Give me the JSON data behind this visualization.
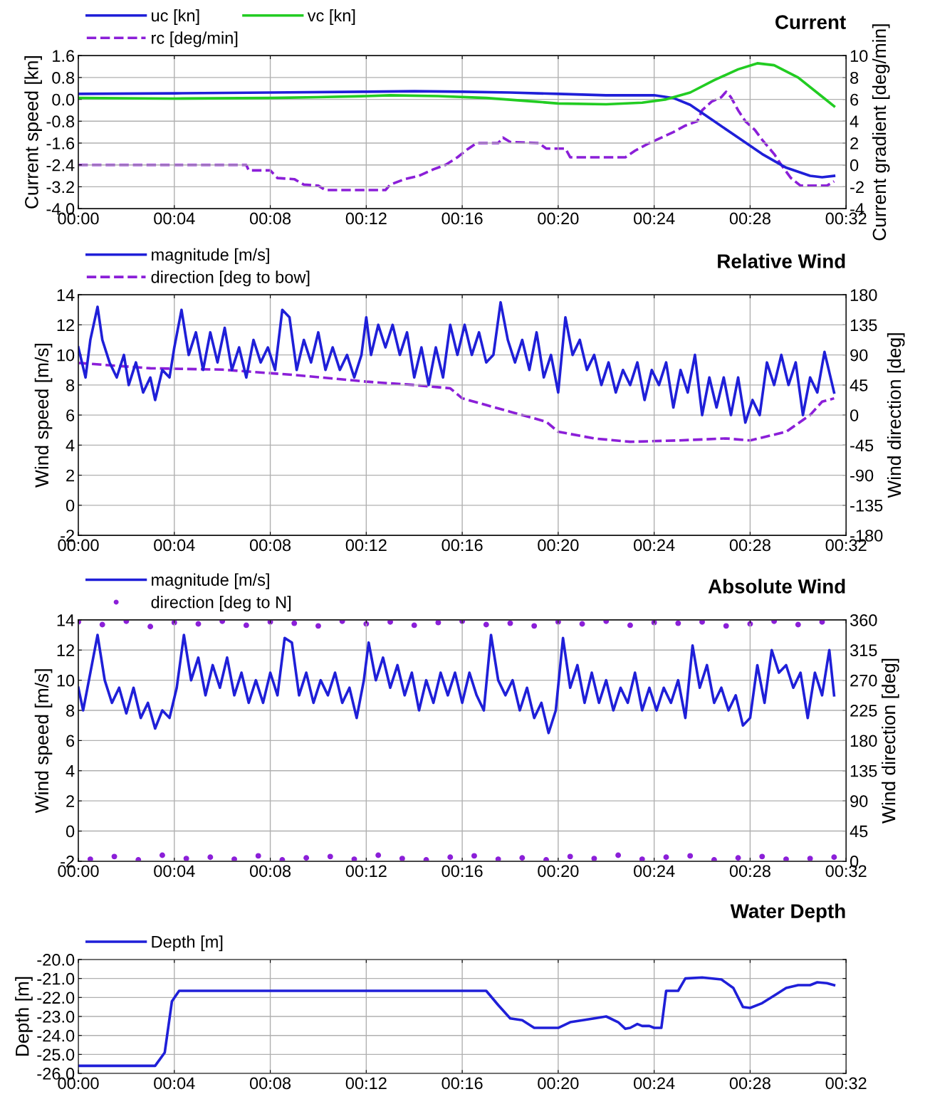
{
  "chart_data": [
    {
      "type": "line",
      "title": "Current",
      "ylabel": "Current speed [kn]",
      "y2label": "Current gradient [deg/min]",
      "xlim": [
        0,
        32
      ],
      "xticks": [
        {
          "value": 0,
          "label": "00:00"
        },
        {
          "value": 4,
          "label": "00:04"
        },
        {
          "value": 8,
          "label": "00:08"
        },
        {
          "value": 12,
          "label": "00:12"
        },
        {
          "value": 16,
          "label": "00:16"
        },
        {
          "value": 20,
          "label": "00:20"
        },
        {
          "value": 24,
          "label": "00:24"
        },
        {
          "value": 28,
          "label": "00:28"
        },
        {
          "value": 32,
          "label": "00:32"
        }
      ],
      "ylim": [
        -4,
        1.6
      ],
      "yticks": [
        {
          "value": -4,
          "label": "-4.0"
        },
        -3.2,
        -2.4,
        -1.6,
        -0.8,
        {
          "value": 0,
          "label": "0.0"
        },
        0.8,
        1.6
      ],
      "y2lim": [
        -4,
        10
      ],
      "y2ticks": [
        -4,
        -2,
        0,
        2,
        4,
        6,
        8,
        10
      ],
      "grid": true,
      "legend": "top left",
      "series": [
        {
          "name": "uc [kn]",
          "color": "#1f1fd8",
          "x": [
            0,
            4,
            8,
            12,
            14,
            16,
            18,
            20,
            22,
            24,
            24.8,
            25.5,
            26.5,
            27.5,
            28.5,
            29.5,
            30.5,
            31,
            31.5
          ],
          "values": [
            0.2,
            0.22,
            0.25,
            0.28,
            0.3,
            0.28,
            0.25,
            0.2,
            0.15,
            0.15,
            0.05,
            -0.2,
            -0.8,
            -1.4,
            -2.0,
            -2.5,
            -2.8,
            -2.85,
            -2.8
          ]
        },
        {
          "name": "vc [kn]",
          "color": "#22cc22",
          "x": [
            0,
            4,
            8,
            10,
            12,
            13,
            15,
            17,
            19,
            20,
            22,
            23.5,
            24.5,
            25.5,
            26.5,
            27.5,
            28.3,
            29,
            30,
            31,
            31.5
          ],
          "values": [
            0.05,
            0.03,
            0.05,
            0.08,
            0.12,
            0.15,
            0.12,
            0.05,
            -0.08,
            -0.15,
            -0.18,
            -0.12,
            0,
            0.25,
            0.7,
            1.1,
            1.32,
            1.25,
            0.8,
            0.1,
            -0.25
          ]
        },
        {
          "name": "rc [deg/min]",
          "color": "#8b1fd8",
          "axis": "y2",
          "line_style": "dashed",
          "x": [
            0,
            7,
            7.1,
            8,
            8.3,
            9,
            9.4,
            10,
            10.3,
            12.8,
            13,
            13.6,
            14.2,
            14.8,
            15.3,
            15.8,
            16.2,
            16.6,
            17.5,
            17.7,
            18,
            19.2,
            19.5,
            20.3,
            20.5,
            22.8,
            23.2,
            23.8,
            24.2,
            24.8,
            25.3,
            25.8,
            26,
            26.4,
            26.8,
            27,
            27.2,
            27.5,
            27.8,
            28.2,
            28.5,
            29,
            29.3,
            29.7,
            30.1,
            31.2,
            31.5
          ],
          "values": [
            0,
            0,
            -0.5,
            -0.5,
            -1.2,
            -1.3,
            -1.8,
            -1.9,
            -2.3,
            -2.3,
            -1.8,
            -1.3,
            -1,
            -0.4,
            0,
            0.7,
            1.4,
            2,
            2,
            2.5,
            2.1,
            2,
            1.5,
            1.5,
            0.7,
            0.7,
            1.3,
            2,
            2.4,
            3,
            3.6,
            4,
            5,
            5.8,
            6.2,
            6.7,
            6.2,
            5,
            4,
            3.2,
            2.3,
            1,
            0,
            -1.2,
            -1.9,
            -1.9,
            -1.5
          ]
        }
      ]
    },
    {
      "type": "line",
      "title": "Relative Wind",
      "ylabel": "Wind speed [m/s]",
      "y2label": "Wind direction [deg]",
      "xlim": [
        0,
        32
      ],
      "xticks": [
        {
          "value": 0,
          "label": "00:00"
        },
        {
          "value": 4,
          "label": "00:04"
        },
        {
          "value": 8,
          "label": "00:08"
        },
        {
          "value": 12,
          "label": "00:12"
        },
        {
          "value": 16,
          "label": "00:16"
        },
        {
          "value": 20,
          "label": "00:20"
        },
        {
          "value": 24,
          "label": "00:24"
        },
        {
          "value": 28,
          "label": "00:28"
        },
        {
          "value": 32,
          "label": "00:32"
        }
      ],
      "ylim": [
        -2,
        14
      ],
      "yticks": [
        -2,
        0,
        2,
        4,
        6,
        8,
        10,
        12,
        14
      ],
      "y2lim": [
        -180,
        180
      ],
      "y2ticks": [
        -180,
        -135,
        -90,
        -45,
        0,
        45,
        90,
        135,
        180
      ],
      "grid": true,
      "legend": "top left",
      "series": [
        {
          "name": "magnitude [m/s]",
          "color": "#1f1fd8",
          "x": [
            0,
            0.3,
            0.5,
            0.8,
            1.0,
            1.3,
            1.6,
            1.9,
            2.1,
            2.4,
            2.7,
            3.0,
            3.2,
            3.5,
            3.8,
            4.0,
            4.3,
            4.6,
            4.9,
            5.2,
            5.5,
            5.8,
            6.1,
            6.4,
            6.7,
            7.0,
            7.3,
            7.6,
            7.9,
            8.2,
            8.5,
            8.8,
            9.1,
            9.4,
            9.7,
            10.0,
            10.3,
            10.6,
            10.9,
            11.2,
            11.5,
            11.8,
            12.0,
            12.2,
            12.5,
            12.8,
            13.1,
            13.4,
            13.7,
            14.0,
            14.3,
            14.6,
            14.9,
            15.2,
            15.5,
            15.8,
            16.1,
            16.4,
            16.7,
            17.0,
            17.3,
            17.6,
            17.9,
            18.2,
            18.5,
            18.8,
            19.1,
            19.4,
            19.7,
            20.0,
            20.3,
            20.6,
            20.9,
            21.2,
            21.5,
            21.8,
            22.1,
            22.4,
            22.7,
            23.0,
            23.3,
            23.6,
            23.9,
            24.2,
            24.5,
            24.8,
            25.1,
            25.4,
            25.7,
            26.0,
            26.3,
            26.6,
            26.9,
            27.2,
            27.5,
            27.8,
            28.1,
            28.4,
            28.7,
            29.0,
            29.3,
            29.6,
            29.9,
            30.2,
            30.5,
            30.8,
            31.1,
            31.5
          ],
          "values": [
            10.5,
            8.5,
            11,
            13.2,
            11,
            9.5,
            8.5,
            10,
            8,
            9.5,
            7.5,
            8.5,
            7,
            9,
            8.5,
            10.5,
            13,
            10,
            11.5,
            9,
            11.5,
            9.5,
            11.8,
            9,
            10.5,
            8.5,
            11,
            9.5,
            10.5,
            9,
            13,
            12.5,
            9,
            11,
            9.5,
            11.5,
            9,
            10.5,
            9,
            10,
            8.5,
            10,
            12.5,
            10,
            12,
            10.5,
            12,
            10,
            11.5,
            8.5,
            10.5,
            8,
            10.5,
            8.5,
            12,
            10,
            12,
            10,
            11.5,
            9.5,
            10,
            13.5,
            11,
            9.5,
            11,
            9,
            11.5,
            8.5,
            10,
            7.5,
            12.5,
            10,
            11,
            9,
            10,
            8,
            9.5,
            7.5,
            9,
            8,
            9.5,
            7,
            9,
            8,
            9.5,
            6.5,
            9,
            7.5,
            10,
            6,
            8.5,
            6.5,
            8.5,
            6,
            8.5,
            5.5,
            7,
            6,
            9.5,
            8,
            10,
            8,
            9.5,
            6,
            8.5,
            7.5,
            10.2,
            7.5
          ]
        },
        {
          "name": "direction [deg to bow]",
          "color": "#8b1fd8",
          "axis": "y2",
          "line_style": "dashed",
          "x": [
            0,
            3,
            6,
            9,
            12,
            14,
            15.5,
            16,
            17,
            18,
            19.5,
            20,
            21.5,
            23,
            25,
            27,
            28,
            29.5,
            30.5,
            31,
            31.5
          ],
          "values": [
            78,
            70,
            68,
            60,
            50,
            45,
            40,
            25,
            15,
            5,
            -10,
            -25,
            -35,
            -40,
            -38,
            -35,
            -38,
            -25,
            0,
            20,
            25
          ]
        }
      ]
    },
    {
      "type": "line",
      "title": "Absolute Wind",
      "ylabel": "Wind speed [m/s]",
      "y2label": "Wind direction [deg]",
      "xlim": [
        0,
        32
      ],
      "xticks": [
        {
          "value": 0,
          "label": "00:00"
        },
        {
          "value": 4,
          "label": "00:04"
        },
        {
          "value": 8,
          "label": "00:08"
        },
        {
          "value": 12,
          "label": "00:12"
        },
        {
          "value": 16,
          "label": "00:16"
        },
        {
          "value": 20,
          "label": "00:20"
        },
        {
          "value": 24,
          "label": "00:24"
        },
        {
          "value": 28,
          "label": "00:28"
        },
        {
          "value": 32,
          "label": "00:32"
        }
      ],
      "ylim": [
        -2,
        14
      ],
      "yticks": [
        -2,
        0,
        2,
        4,
        6,
        8,
        10,
        12,
        14
      ],
      "y2lim": [
        0,
        360
      ],
      "y2ticks": [
        0,
        45,
        90,
        135,
        180,
        225,
        270,
        315,
        360
      ],
      "grid": true,
      "legend": "top left",
      "series": [
        {
          "name": "magnitude [m/s]",
          "color": "#1f1fd8",
          "x": [
            0,
            0.2,
            0.5,
            0.8,
            1.1,
            1.4,
            1.7,
            2.0,
            2.3,
            2.6,
            2.9,
            3.2,
            3.5,
            3.8,
            4.1,
            4.4,
            4.7,
            5.0,
            5.3,
            5.6,
            5.9,
            6.2,
            6.5,
            6.8,
            7.1,
            7.4,
            7.7,
            8.0,
            8.3,
            8.6,
            8.9,
            9.2,
            9.5,
            9.8,
            10.1,
            10.4,
            10.7,
            11.0,
            11.3,
            11.6,
            11.9,
            12.1,
            12.4,
            12.7,
            13.0,
            13.3,
            13.6,
            13.9,
            14.2,
            14.5,
            14.8,
            15.1,
            15.4,
            15.7,
            16.0,
            16.3,
            16.6,
            16.9,
            17.2,
            17.5,
            17.8,
            18.1,
            18.4,
            18.7,
            19.0,
            19.3,
            19.6,
            19.9,
            20.2,
            20.5,
            20.8,
            21.1,
            21.4,
            21.7,
            22.0,
            22.3,
            22.6,
            22.9,
            23.2,
            23.5,
            23.8,
            24.1,
            24.4,
            24.7,
            25.0,
            25.3,
            25.6,
            25.9,
            26.2,
            26.5,
            26.8,
            27.1,
            27.4,
            27.7,
            28.0,
            28.3,
            28.6,
            28.9,
            29.2,
            29.5,
            29.8,
            30.1,
            30.4,
            30.7,
            31.0,
            31.3,
            31.5
          ],
          "values": [
            9.5,
            8,
            10.5,
            13,
            10,
            8.5,
            9.5,
            7.8,
            9.5,
            7.5,
            8.5,
            6.8,
            8,
            7.5,
            9.5,
            13,
            10,
            11.5,
            9,
            11,
            9.5,
            11.5,
            9,
            10.5,
            8.5,
            10,
            8.5,
            10.5,
            9,
            12.8,
            12.5,
            9,
            10.5,
            8.5,
            10,
            9,
            10.5,
            8.5,
            9.5,
            7.5,
            10,
            12.5,
            10,
            11.5,
            9.5,
            11,
            9,
            10.5,
            8,
            10,
            8.5,
            10.5,
            9,
            10.5,
            8.5,
            10.5,
            9,
            8,
            13,
            10,
            9,
            10,
            8,
            9.5,
            7.5,
            8.5,
            6.5,
            8,
            12.8,
            9.5,
            11,
            8.5,
            10.5,
            8.5,
            10,
            8,
            9.5,
            8.5,
            10.5,
            8,
            9.5,
            8,
            9.5,
            8.5,
            10,
            7.5,
            12.3,
            9.5,
            11,
            8.5,
            9.5,
            8,
            9,
            7,
            7.5,
            11,
            8.5,
            12,
            10.5,
            11,
            9.5,
            10.5,
            7.5,
            10.5,
            9,
            12,
            9
          ]
        },
        {
          "name": "direction [deg to N]",
          "color": "#8b1fd8",
          "axis": "y2",
          "type": "scatter",
          "marker": "circle",
          "x": [
            0,
            1,
            2,
            3,
            4,
            5,
            6,
            7,
            8,
            9,
            10,
            11,
            12,
            13,
            14,
            15,
            16,
            17,
            18,
            19,
            20,
            21,
            22,
            23,
            24,
            25,
            26,
            27,
            28,
            29,
            30,
            31,
            0.5,
            1.5,
            2.5,
            3.5,
            4.5,
            5.5,
            6.5,
            7.5,
            8.5,
            9.5,
            10.5,
            11.5,
            12.5,
            13.5,
            14.5,
            15.5,
            16.5,
            17.5,
            18.5,
            19.5,
            20.5,
            21.5,
            22.5,
            23.5,
            24.5,
            25.5,
            26.5,
            27.5,
            28.5,
            29.5,
            30.5,
            31.5
          ],
          "values": [
            357,
            353,
            358,
            350,
            356,
            354,
            358,
            352,
            357,
            355,
            351,
            358,
            354,
            357,
            352,
            356,
            358,
            353,
            355,
            351,
            357,
            354,
            358,
            352,
            356,
            355,
            357,
            351,
            354,
            358,
            353,
            357,
            3,
            7,
            2,
            9,
            4,
            6,
            3,
            8,
            2,
            5,
            7,
            3,
            9,
            4,
            2,
            6,
            8,
            3,
            5,
            2,
            7,
            4,
            9,
            3,
            6,
            8,
            2,
            5,
            7,
            3,
            4,
            6
          ]
        }
      ]
    },
    {
      "type": "line",
      "title": "Water Depth",
      "ylabel": "Depth [m]",
      "xlim": [
        0,
        32
      ],
      "xticks": [
        {
          "value": 0,
          "label": "00:00"
        },
        {
          "value": 4,
          "label": "00:04"
        },
        {
          "value": 8,
          "label": "00:08"
        },
        {
          "value": 12,
          "label": "00:12"
        },
        {
          "value": 16,
          "label": "00:16"
        },
        {
          "value": 20,
          "label": "00:20"
        },
        {
          "value": 24,
          "label": "00:24"
        },
        {
          "value": 28,
          "label": "00:28"
        },
        {
          "value": 32,
          "label": "00:32"
        }
      ],
      "ylim": [
        -26,
        -20
      ],
      "yticks": [
        {
          "value": -26,
          "label": "-26.0"
        },
        {
          "value": -25,
          "label": "-25.0"
        },
        {
          "value": -24,
          "label": "-24.0"
        },
        {
          "value": -23,
          "label": "-23.0"
        },
        {
          "value": -22,
          "label": "-22.0"
        },
        {
          "value": -21,
          "label": "-21.0"
        },
        {
          "value": -20,
          "label": "-20.0"
        }
      ],
      "grid": true,
      "legend": "top left",
      "series": [
        {
          "name": "Depth [m]",
          "color": "#1f1fd8",
          "x": [
            0,
            3.2,
            3.6,
            3.9,
            4.2,
            17.0,
            17.5,
            18.0,
            18.5,
            19.0,
            20.0,
            20.5,
            21.5,
            22.0,
            22.5,
            22.8,
            23.0,
            23.3,
            23.5,
            23.8,
            24.0,
            24.3,
            24.5,
            25.0,
            25.3,
            26.0,
            26.8,
            27.3,
            27.7,
            28.0,
            28.5,
            29.0,
            29.5,
            30.0,
            30.5,
            30.8,
            31.2,
            31.5
          ],
          "values": [
            -25.6,
            -25.6,
            -24.9,
            -22.2,
            -21.65,
            -21.65,
            -22.4,
            -23.1,
            -23.2,
            -23.6,
            -23.6,
            -23.3,
            -23.1,
            -23.0,
            -23.3,
            -23.65,
            -23.6,
            -23.4,
            -23.5,
            -23.5,
            -23.6,
            -23.6,
            -21.65,
            -21.65,
            -21.0,
            -20.95,
            -21.05,
            -21.5,
            -22.5,
            -22.55,
            -22.3,
            -21.9,
            -21.5,
            -21.35,
            -21.35,
            -21.2,
            -21.25,
            -21.35
          ]
        }
      ]
    }
  ]
}
